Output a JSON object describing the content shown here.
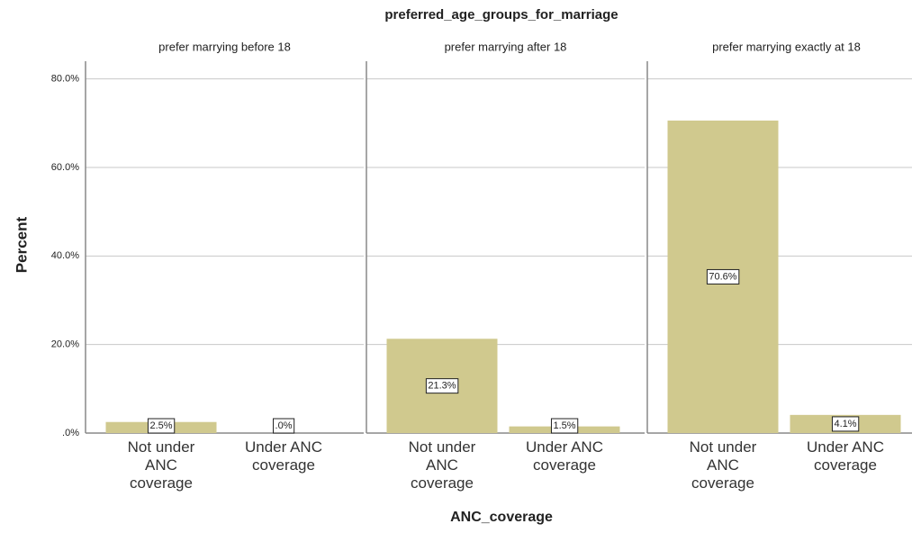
{
  "chart_data": {
    "type": "bar",
    "title": "preferred_age_groups_for_marriage",
    "x_label": "ANC_coverage",
    "y_label": "Percent",
    "color": "#d0c98e",
    "categories": [
      "Not under ANC coverage",
      "Under ANC coverage"
    ],
    "ylim": [
      0,
      84
    ],
    "yticks": [
      {
        "value": 0,
        "label": ".0%"
      },
      {
        "value": 20,
        "label": "20.0%"
      },
      {
        "value": 40,
        "label": "40.0%"
      },
      {
        "value": 60,
        "label": "60.0%"
      },
      {
        "value": 80,
        "label": "80.0%"
      }
    ],
    "grid": true,
    "panels": [
      {
        "title": "prefer marrying before 18",
        "values": [
          2.5,
          0.0
        ],
        "value_labels": [
          "2.5%",
          ".0%"
        ]
      },
      {
        "title": "prefer marrying after 18",
        "values": [
          21.3,
          1.5
        ],
        "value_labels": [
          "21.3%",
          "1.5%"
        ]
      },
      {
        "title": "prefer marrying exactly at 18",
        "values": [
          70.6,
          4.1
        ],
        "value_labels": [
          "70.6%",
          "4.1%"
        ]
      }
    ]
  }
}
